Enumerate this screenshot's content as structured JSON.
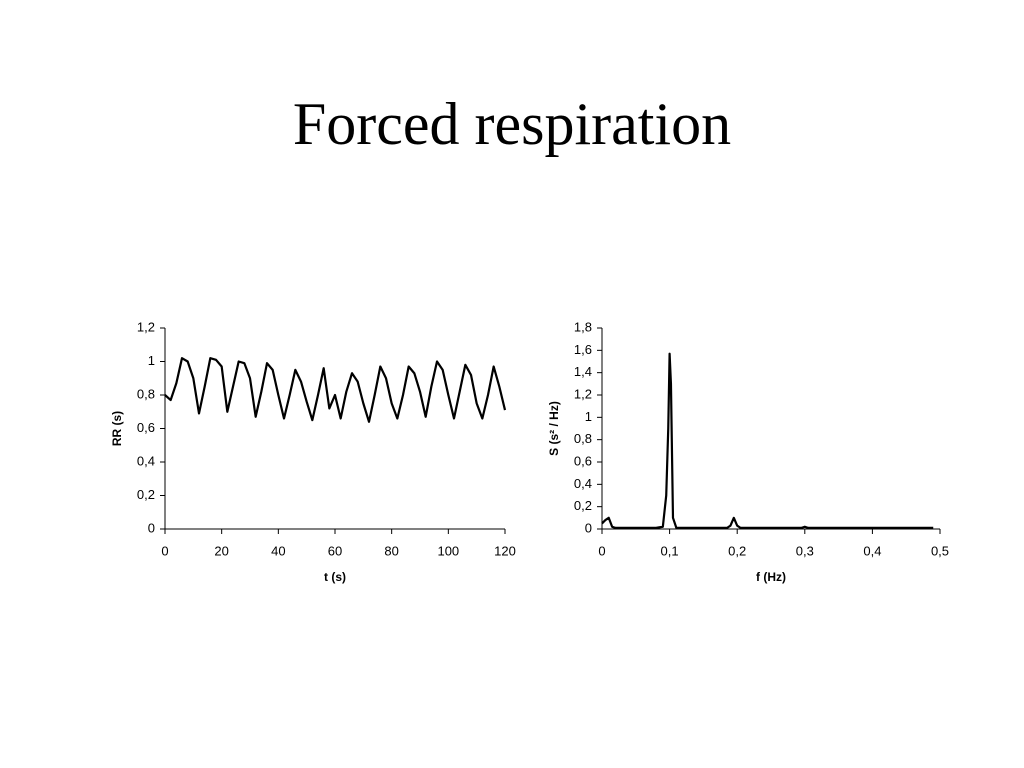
{
  "title": "Forced respiration",
  "chart_data": [
    {
      "type": "line",
      "xlabel": "t (s)",
      "ylabel": "RR (s)",
      "color": "#000000",
      "x": [
        0,
        2,
        4,
        6,
        8,
        10,
        12,
        14,
        16,
        18,
        20,
        22,
        24,
        26,
        28,
        30,
        32,
        34,
        36,
        38,
        40,
        42,
        44,
        46,
        48,
        50,
        52,
        54,
        56,
        58,
        60,
        62,
        64,
        66,
        68,
        70,
        72,
        74,
        76,
        78,
        80,
        82,
        84,
        86,
        88,
        90,
        92,
        94,
        96,
        98,
        100,
        102,
        104,
        106,
        108,
        110,
        112,
        114,
        116,
        118,
        120
      ],
      "values": [
        0.8,
        0.77,
        0.87,
        1.02,
        1.0,
        0.9,
        0.69,
        0.85,
        1.02,
        1.01,
        0.97,
        0.7,
        0.85,
        1.0,
        0.99,
        0.9,
        0.67,
        0.82,
        0.99,
        0.95,
        0.8,
        0.66,
        0.8,
        0.95,
        0.88,
        0.76,
        0.65,
        0.8,
        0.96,
        0.72,
        0.8,
        0.66,
        0.82,
        0.93,
        0.88,
        0.75,
        0.64,
        0.8,
        0.97,
        0.9,
        0.75,
        0.66,
        0.8,
        0.97,
        0.93,
        0.82,
        0.67,
        0.85,
        1.0,
        0.95,
        0.8,
        0.66,
        0.82,
        0.98,
        0.92,
        0.75,
        0.66,
        0.8,
        0.97,
        0.85,
        0.71
      ],
      "xlim": [
        0,
        120
      ],
      "xticks": [
        0,
        20,
        40,
        60,
        80,
        100,
        120
      ],
      "ylim": [
        0,
        1.2
      ],
      "yticks": [
        0,
        {
          "value": 0.2,
          "label": "0,2"
        },
        {
          "value": 0.4,
          "label": "0,4"
        },
        {
          "value": 0.6,
          "label": "0,6"
        },
        {
          "value": 0.8,
          "label": "0,8"
        },
        1,
        {
          "value": 1.2,
          "label": "1,2"
        }
      ]
    },
    {
      "type": "line",
      "xlabel": "f (Hz)",
      "ylabel": "S (s² / Hz)",
      "color": "#000000",
      "x": [
        0,
        0.005,
        0.01,
        0.015,
        0.02,
        0.04,
        0.06,
        0.08,
        0.09,
        0.095,
        0.098,
        0.1,
        0.102,
        0.105,
        0.11,
        0.15,
        0.185,
        0.19,
        0.195,
        0.2,
        0.205,
        0.25,
        0.295,
        0.3,
        0.305,
        0.4,
        0.49
      ],
      "values": [
        0.05,
        0.08,
        0.1,
        0.02,
        0.01,
        0.01,
        0.01,
        0.01,
        0.02,
        0.3,
        0.9,
        1.57,
        1.3,
        0.1,
        0.01,
        0.01,
        0.01,
        0.03,
        0.1,
        0.03,
        0.01,
        0.01,
        0.01,
        0.02,
        0.01,
        0.01,
        0.01
      ],
      "xlim": [
        0,
        0.5
      ],
      "xticks": [
        0,
        {
          "value": 0.1,
          "label": "0,1"
        },
        {
          "value": 0.2,
          "label": "0,2"
        },
        {
          "value": 0.3,
          "label": "0,3"
        },
        {
          "value": 0.4,
          "label": "0,4"
        },
        {
          "value": 0.5,
          "label": "0,5"
        }
      ],
      "ylim": [
        0,
        1.8
      ],
      "yticks": [
        0,
        {
          "value": 0.2,
          "label": "0,2"
        },
        {
          "value": 0.4,
          "label": "0,4"
        },
        {
          "value": 0.6,
          "label": "0,6"
        },
        {
          "value": 0.8,
          "label": "0,8"
        },
        1,
        {
          "value": 1.2,
          "label": "1,2"
        },
        {
          "value": 1.4,
          "label": "1,4"
        },
        {
          "value": 1.6,
          "label": "1,6"
        },
        {
          "value": 1.8,
          "label": "1,8"
        }
      ]
    }
  ]
}
